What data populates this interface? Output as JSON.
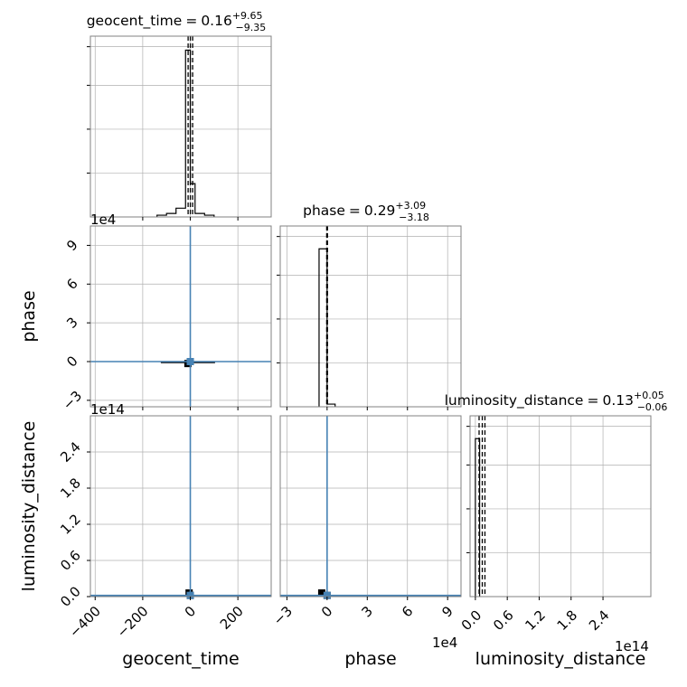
{
  "chart_data": [
    {
      "type": "histogram",
      "panel": "geocent_time",
      "title_parts": {
        "name": "geocent_time",
        "eq": "=",
        "value": "0.16",
        "plus": "+9.65",
        "minus": "−9.35"
      },
      "xlim": [
        -420,
        340
      ],
      "x_ticks": [
        -400,
        -200,
        0,
        200
      ],
      "bins": [
        {
          "x0": -140,
          "x1": -100,
          "y": 0.01
        },
        {
          "x0": -100,
          "x1": -60,
          "y": 0.02
        },
        {
          "x0": -60,
          "x1": -20,
          "y": 0.05
        },
        {
          "x0": -20,
          "x1": 0,
          "y": 0.95
        },
        {
          "x0": 0,
          "x1": 20,
          "y": 0.19
        },
        {
          "x0": 20,
          "x1": 60,
          "y": 0.02
        },
        {
          "x0": 60,
          "x1": 100,
          "y": 0.01
        }
      ],
      "ymax": 1.0,
      "quantiles": [
        -9.19,
        0.16,
        9.81
      ],
      "grid": true
    },
    {
      "type": "histogram",
      "panel": "phase",
      "title_parts": {
        "name": "phase",
        "eq": "=",
        "value": "0.29",
        "plus": "+3.09",
        "minus": "−3.18"
      },
      "xlim": [
        -3.5,
        10.0
      ],
      "x_ticks": [
        -3,
        0,
        3,
        6,
        9
      ],
      "x_offset": "1e4",
      "bins": [
        {
          "x0": -0.6,
          "x1": 0.0,
          "y": 0.9
        },
        {
          "x0": 0.0,
          "x1": 0.6,
          "y": 0.015
        }
      ],
      "ymax": 1.0,
      "quantiles": [
        -0.03,
        0.0,
        0.03
      ],
      "grid": true
    },
    {
      "type": "histogram",
      "panel": "luminosity_distance",
      "title_parts": {
        "name": "luminosity_distance",
        "eq": "=",
        "value": "0.13",
        "plus": "+0.05",
        "minus": "−0.06"
      },
      "xlim": [
        -0.1,
        3.3
      ],
      "x_ticks": [
        0.0,
        0.6,
        1.2,
        1.8,
        2.4
      ],
      "x_tick_labels": [
        "0.0",
        "0.6",
        "1.2",
        "1.8",
        "2.4"
      ],
      "x_offset": "1e14",
      "bins": [
        {
          "x0": 0.0,
          "x1": 0.08,
          "y": 0.9
        }
      ],
      "ymax": 1.0,
      "quantiles": [
        0.07,
        0.13,
        0.18
      ],
      "grid": true
    },
    {
      "type": "scatter",
      "panel": "phase vs geocent_time",
      "xlim": [
        -420,
        340
      ],
      "ylim": [
        -3.5,
        10.5
      ],
      "y_ticks": [
        -3,
        0,
        3,
        6,
        9
      ],
      "y_offset": "1e4",
      "truth": {
        "x": 0,
        "y": 0
      },
      "density_points": [
        {
          "x": -10,
          "y": -0.15
        },
        {
          "x": 0,
          "y": 0
        }
      ],
      "grid": true
    },
    {
      "type": "scatter",
      "panel": "luminosity_distance vs geocent_time",
      "xlim": [
        -420,
        340
      ],
      "ylim": [
        0,
        3.0
      ],
      "y_ticks": [
        0.0,
        0.6,
        1.2,
        1.8,
        2.4
      ],
      "y_tick_labels": [
        "0.0",
        "0.6",
        "1.2",
        "1.8",
        "2.4"
      ],
      "y_offset": "1e14",
      "truth": {
        "x": 0,
        "y": 0.02
      },
      "density_points": [
        {
          "x": -5,
          "y": 0.06
        },
        {
          "x": 0,
          "y": 0.02
        }
      ],
      "grid": true
    },
    {
      "type": "scatter",
      "panel": "luminosity_distance vs phase",
      "xlim": [
        -3.5,
        10.0
      ],
      "ylim": [
        0,
        3.0
      ],
      "truth": {
        "x": 0,
        "y": 0.02
      },
      "density_points": [
        {
          "x": -0.4,
          "y": 0.06
        },
        {
          "x": 0,
          "y": 0.02
        }
      ],
      "grid": true
    }
  ],
  "axis_labels": {
    "x_bottom": [
      "geocent_time",
      "phase",
      "luminosity_distance"
    ],
    "y_left": [
      "phase",
      "luminosity_distance"
    ]
  },
  "colors": {
    "truth": "#4682b4",
    "hist": "#000000",
    "grid": "#b0b0b0",
    "frame": "#808080"
  }
}
